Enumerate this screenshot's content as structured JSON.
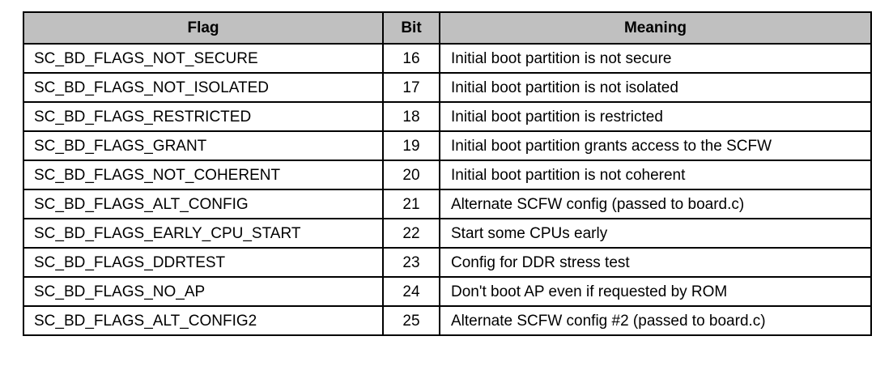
{
  "table": {
    "columns": [
      "Flag",
      "Bit",
      "Meaning"
    ],
    "rows": [
      {
        "flag": "SC_BD_FLAGS_NOT_SECURE",
        "bit": "16",
        "meaning": "Initial boot partition is not secure"
      },
      {
        "flag": "SC_BD_FLAGS_NOT_ISOLATED",
        "bit": "17",
        "meaning": "Initial boot partition is not isolated"
      },
      {
        "flag": "SC_BD_FLAGS_RESTRICTED",
        "bit": "18",
        "meaning": "Initial boot partition is restricted"
      },
      {
        "flag": "SC_BD_FLAGS_GRANT",
        "bit": "19",
        "meaning": "Initial boot partition grants access to the SCFW"
      },
      {
        "flag": "SC_BD_FLAGS_NOT_COHERENT",
        "bit": "20",
        "meaning": "Initial boot partition is not coherent"
      },
      {
        "flag": "SC_BD_FLAGS_ALT_CONFIG",
        "bit": "21",
        "meaning": "Alternate SCFW config (passed to board.c)"
      },
      {
        "flag": "SC_BD_FLAGS_EARLY_CPU_START",
        "bit": "22",
        "meaning": "Start some CPUs early"
      },
      {
        "flag": "SC_BD_FLAGS_DDRTEST",
        "bit": "23",
        "meaning": "Config for DDR stress test"
      },
      {
        "flag": "SC_BD_FLAGS_NO_AP",
        "bit": "24",
        "meaning": "Don't boot AP even if requested by ROM"
      },
      {
        "flag": "SC_BD_FLAGS_ALT_CONFIG2",
        "bit": "25",
        "meaning": "Alternate SCFW config #2 (passed to board.c)"
      }
    ]
  },
  "colors": {
    "header_background": "#c0c0c0",
    "border": "#000000",
    "text": "#000000",
    "page_background": "#ffffff"
  }
}
